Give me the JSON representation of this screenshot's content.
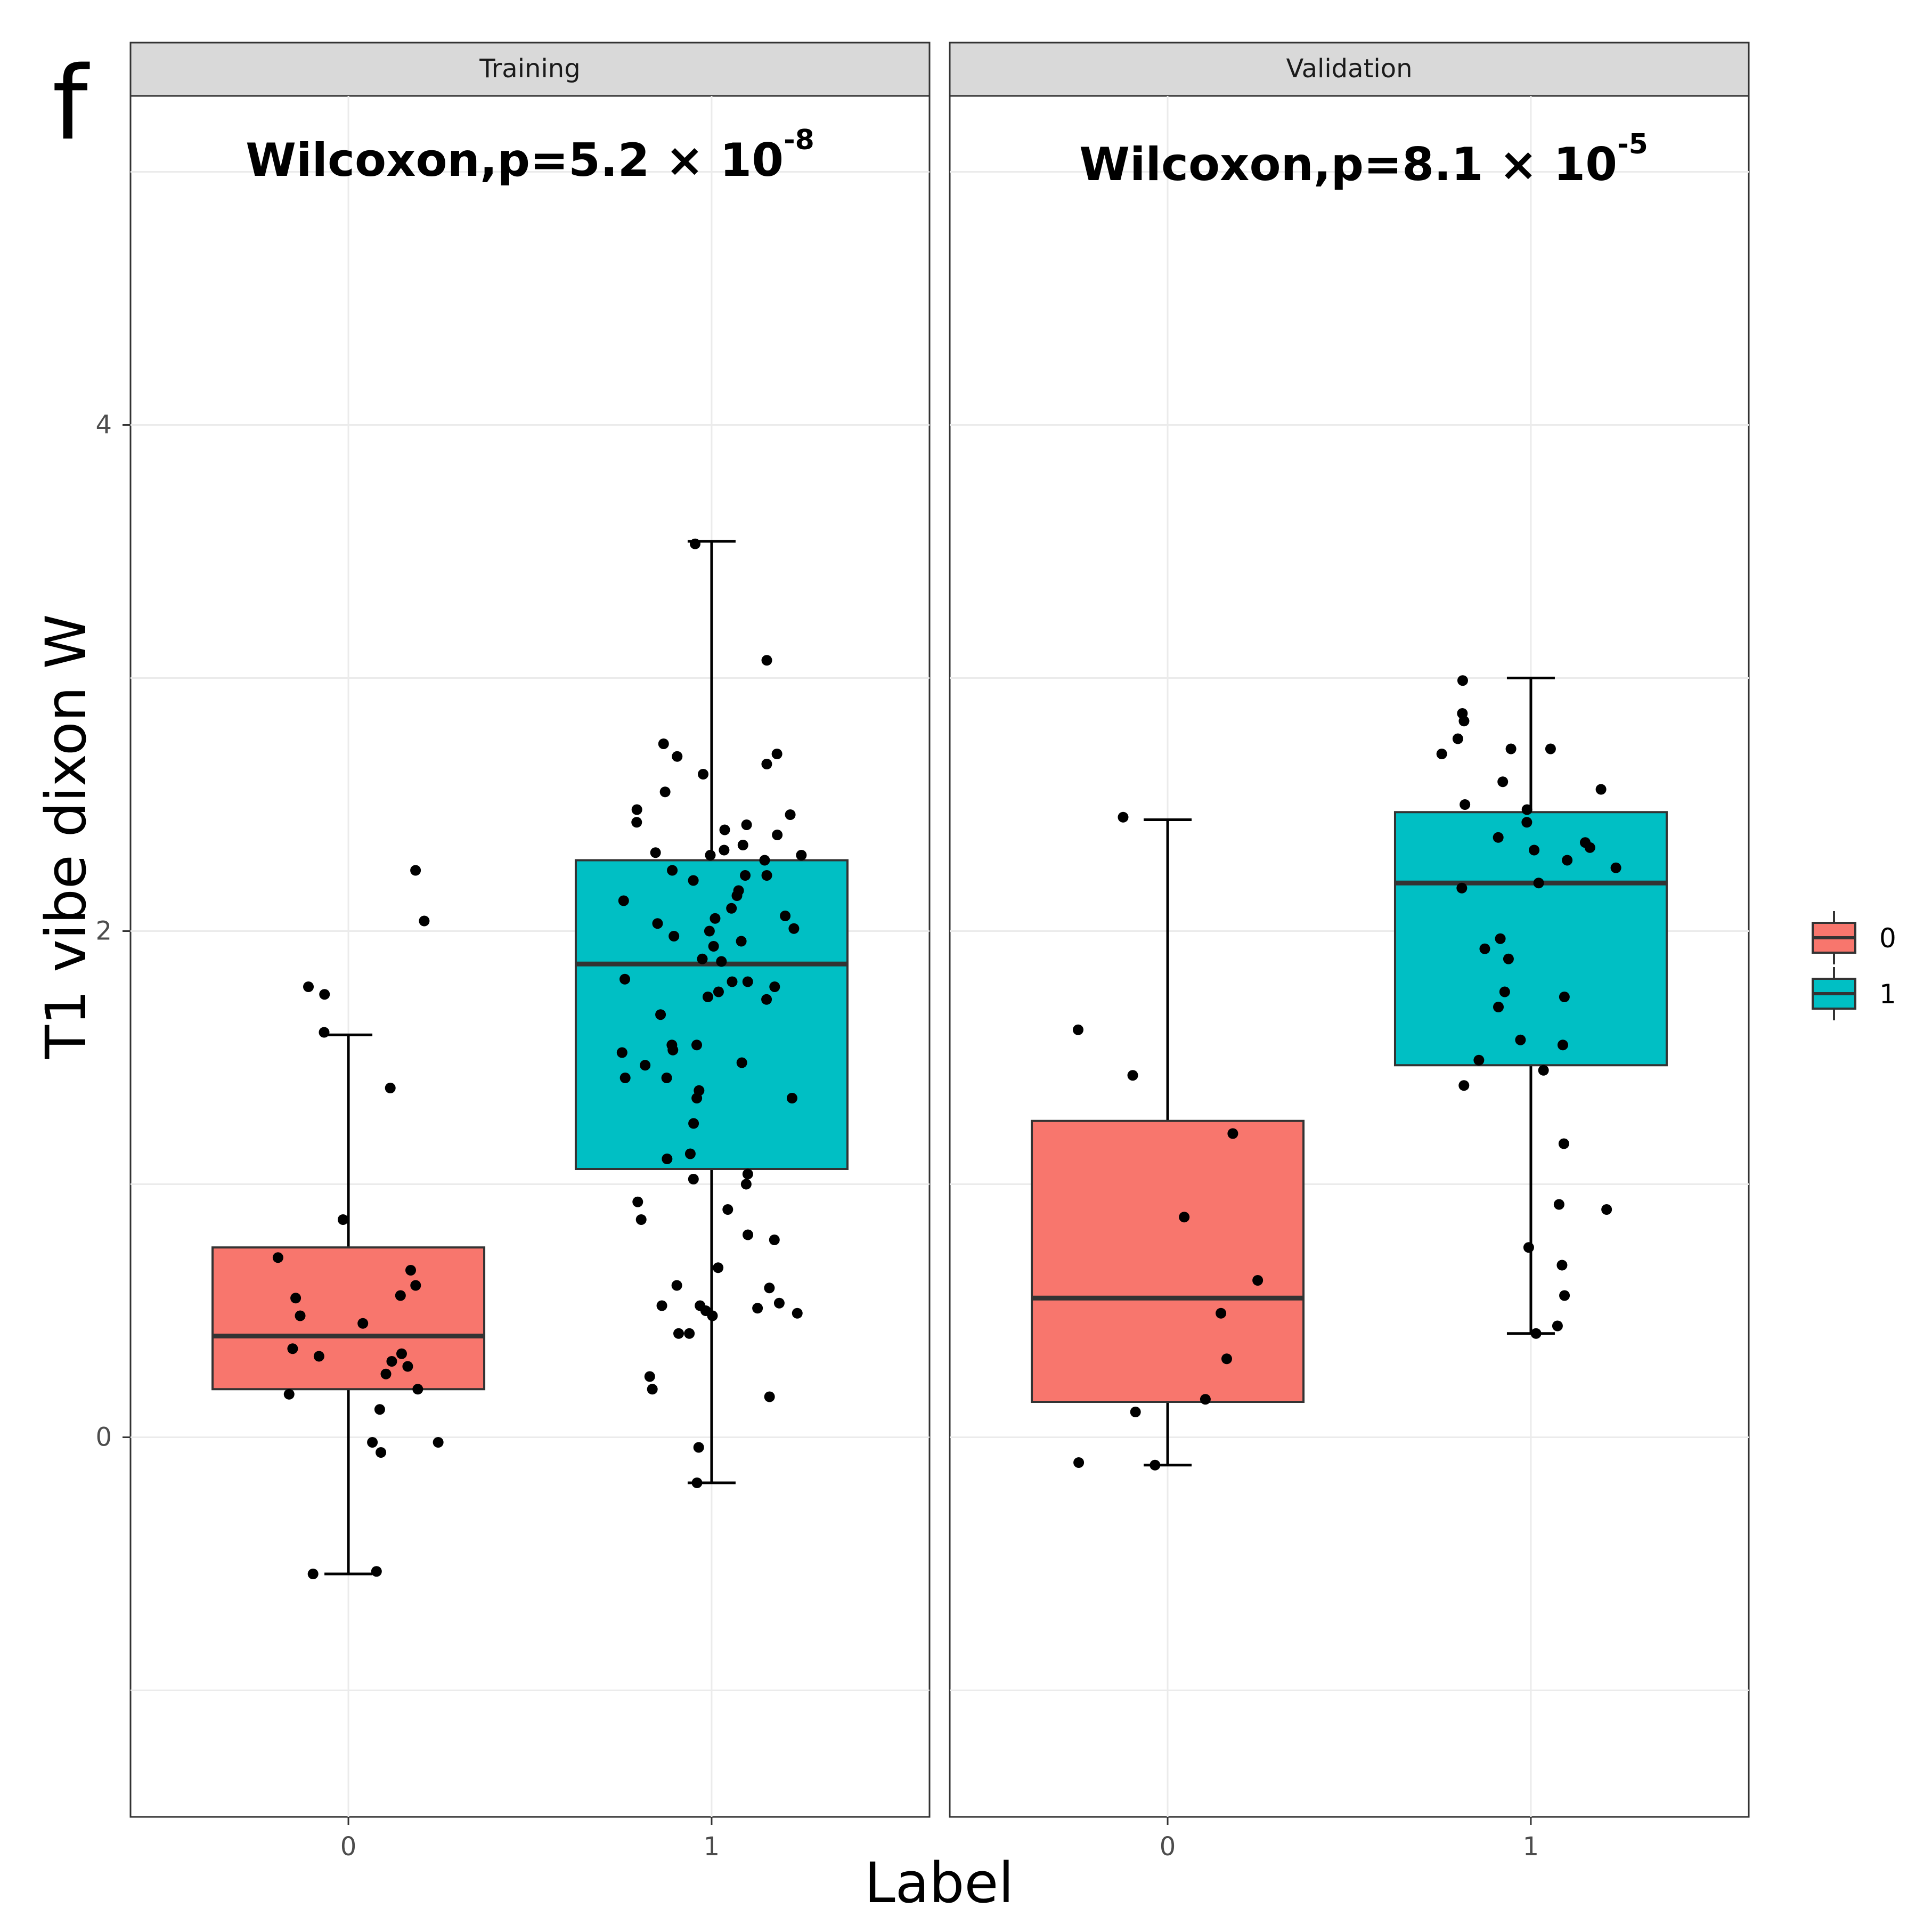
{
  "panel_letter": "f",
  "colors": {
    "group_0": "#F8766D",
    "group_1": "#00BFC4",
    "strip_bg": "#D9D9D9"
  },
  "chart_data": {
    "type": "boxplot",
    "xlabel": "Label",
    "ylabel": "T1 vibe dixon W",
    "categories": [
      "0",
      "1"
    ],
    "y_ticks": [
      0,
      2,
      4
    ],
    "y_tick_labels": [
      "0",
      "2",
      "4"
    ],
    "ylim": [
      -1.5,
      5.3
    ],
    "legend": {
      "position": "right",
      "title": "",
      "entries": [
        "0",
        "1"
      ]
    },
    "panels": [
      {
        "name": "Training",
        "test_label": "Wilcoxon,p=5.2 × 10",
        "test_exponent": "-8",
        "boxes": [
          {
            "group": "0",
            "whisker_low": -0.54,
            "q1": 0.19,
            "median": 0.4,
            "q3": 0.75,
            "whisker_high": 1.59
          },
          {
            "group": "1",
            "whisker_low": -0.18,
            "q1": 1.06,
            "median": 1.87,
            "q3": 2.28,
            "whisker_high": 3.54
          }
        ],
        "points": [
          {
            "group": "0",
            "values": [
              -0.53,
              -0.54,
              -0.02,
              -0.02,
              -0.06,
              0.11,
              0.17,
              0.19,
              0.25,
              0.28,
              0.3,
              0.32,
              0.33,
              0.35,
              0.45,
              0.48,
              0.55,
              0.56,
              0.6,
              0.66,
              0.71,
              0.86,
              1.38,
              1.6,
              1.78,
              1.75,
              2.04,
              2.24
            ]
          },
          {
            "group": "1",
            "values": [
              -0.18,
              -0.04,
              0.16,
              0.19,
              0.24,
              0.41,
              0.41,
              0.48,
              0.49,
              0.5,
              0.51,
              0.52,
              0.52,
              0.53,
              0.59,
              0.6,
              0.67,
              0.78,
              0.8,
              0.86,
              0.9,
              0.93,
              1.0,
              1.02,
              1.04,
              1.1,
              1.12,
              1.24,
              1.34,
              1.34,
              1.37,
              1.42,
              1.42,
              1.47,
              1.48,
              1.52,
              1.53,
              1.55,
              1.55,
              1.67,
              1.73,
              1.74,
              1.76,
              1.78,
              1.8,
              1.8,
              1.81,
              1.88,
              1.89,
              1.94,
              1.96,
              1.98,
              2.0,
              2.01,
              2.03,
              2.05,
              2.06,
              2.09,
              2.12,
              2.14,
              2.16,
              2.2,
              2.22,
              2.22,
              2.24,
              2.28,
              2.3,
              2.3,
              2.31,
              2.32,
              2.34,
              2.38,
              2.4,
              2.42,
              2.43,
              2.46,
              2.48,
              2.55,
              2.62,
              2.66,
              2.69,
              2.7,
              2.74,
              3.07,
              3.53
            ]
          }
        ]
      },
      {
        "name": "Validation",
        "test_label": "Wilcoxon,p=8.1 × 10",
        "test_exponent": "-5",
        "boxes": [
          {
            "group": "0",
            "whisker_low": -0.11,
            "q1": 0.14,
            "median": 0.55,
            "q3": 1.25,
            "whisker_high": 2.44
          },
          {
            "group": "1",
            "whisker_low": 0.41,
            "q1": 1.47,
            "median": 2.19,
            "q3": 2.47,
            "whisker_high": 3.0
          }
        ],
        "points": [
          {
            "group": "0",
            "values": [
              -0.11,
              -0.1,
              0.1,
              0.15,
              0.31,
              0.49,
              0.62,
              0.87,
              1.2,
              1.43,
              1.61,
              2.45
            ]
          },
          {
            "group": "1",
            "values": [
              0.41,
              0.44,
              0.56,
              0.68,
              0.75,
              0.92,
              0.9,
              1.16,
              1.39,
              1.45,
              1.49,
              1.55,
              1.57,
              1.7,
              1.74,
              1.76,
              1.89,
              1.93,
              1.97,
              2.17,
              2.19,
              2.25,
              2.28,
              2.32,
              2.33,
              2.35,
              2.37,
              2.43,
              2.48,
              2.5,
              2.56,
              2.59,
              2.7,
              2.72,
              2.72,
              2.76,
              2.83,
              2.86,
              2.99
            ]
          }
        ]
      }
    ]
  }
}
